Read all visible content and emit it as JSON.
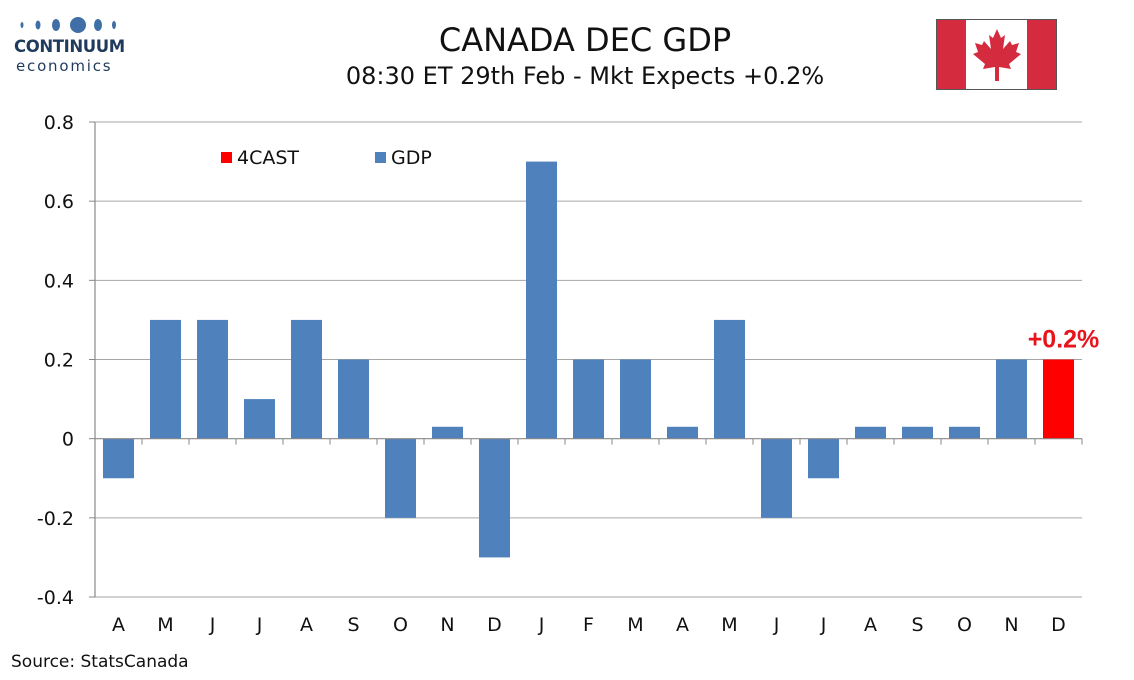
{
  "header": {
    "title": "CANADA DEC GDP",
    "subtitle": "08:30 ET 29th Feb - Mkt Expects +0.2%"
  },
  "logo": {
    "brand": "CONTINUUM",
    "sub": "economics",
    "color": "#1f3b5c"
  },
  "flag": {
    "icon": "canada-flag-icon",
    "red": "#d52b3f",
    "white": "#ffffff"
  },
  "footer": {
    "source": "Source: StatsCanada"
  },
  "colors": {
    "gdp": "#4f81bd",
    "forecast": "#ff0000",
    "annotation": "#e8141b",
    "grid": "#a6a6a6",
    "axis": "#888888"
  },
  "chart_data": {
    "type": "bar",
    "categories": [
      "A",
      "M",
      "J",
      "J",
      "A",
      "S",
      "O",
      "N",
      "D",
      "J",
      "F",
      "M",
      "A",
      "M",
      "J",
      "J",
      "A",
      "S",
      "O",
      "N",
      "D"
    ],
    "series": [
      {
        "name": "GDP",
        "color": "#4f81bd",
        "values": [
          -0.1,
          0.3,
          0.3,
          0.1,
          0.3,
          0.2,
          -0.2,
          0.03,
          -0.3,
          0.7,
          0.2,
          0.2,
          0.03,
          0.3,
          -0.2,
          -0.1,
          0.03,
          0.03,
          0.03,
          0.2,
          null
        ]
      },
      {
        "name": "4CAST",
        "color": "#ff0000",
        "values": [
          null,
          null,
          null,
          null,
          null,
          null,
          null,
          null,
          null,
          null,
          null,
          null,
          null,
          null,
          null,
          null,
          null,
          null,
          null,
          null,
          0.2
        ]
      }
    ],
    "ylim": [
      -0.4,
      0.8
    ],
    "yticks": [
      0.8,
      0.6,
      0.4,
      0.2,
      0,
      -0.2,
      -0.4
    ],
    "ytick_labels": [
      "0.8",
      "0.6",
      "0.4",
      "0.2",
      "0",
      "-0.2",
      "-0.4"
    ],
    "grid": true,
    "legend": {
      "position": "top-left",
      "entries": [
        "4CAST",
        "GDP"
      ]
    },
    "annotations": [
      {
        "text": "+0.2%",
        "category_index": 20,
        "value": 0.2
      }
    ],
    "xlabel": "",
    "ylabel": ""
  }
}
